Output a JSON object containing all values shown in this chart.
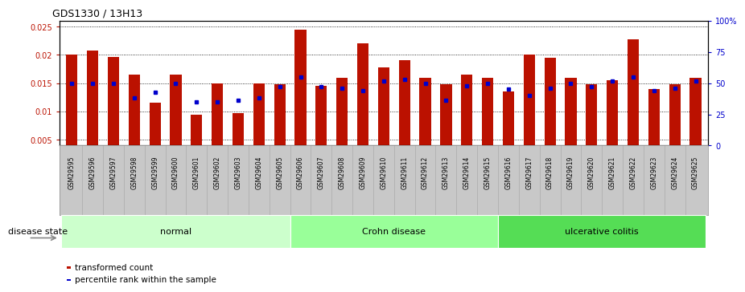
{
  "title": "GDS1330 / 13H13",
  "samples": [
    "GSM29595",
    "GSM29596",
    "GSM29597",
    "GSM29598",
    "GSM29599",
    "GSM29600",
    "GSM29601",
    "GSM29602",
    "GSM29603",
    "GSM29604",
    "GSM29605",
    "GSM29606",
    "GSM29607",
    "GSM29608",
    "GSM29609",
    "GSM29610",
    "GSM29611",
    "GSM29612",
    "GSM29613",
    "GSM29614",
    "GSM29615",
    "GSM29616",
    "GSM29617",
    "GSM29618",
    "GSM29619",
    "GSM29620",
    "GSM29621",
    "GSM29622",
    "GSM29623",
    "GSM29624",
    "GSM29625"
  ],
  "transformed_count": [
    0.02,
    0.0207,
    0.0197,
    0.0165,
    0.0115,
    0.0165,
    0.0095,
    0.015,
    0.0097,
    0.015,
    0.0148,
    0.0244,
    0.0145,
    0.016,
    0.022,
    0.0178,
    0.019,
    0.016,
    0.0148,
    0.0165,
    0.016,
    0.0135,
    0.02,
    0.0195,
    0.016,
    0.0148,
    0.0155,
    0.0228,
    0.014,
    0.0148,
    0.016
  ],
  "percentile_rank": [
    50,
    50,
    50,
    38,
    43,
    50,
    35,
    35,
    36,
    38,
    47,
    55,
    47,
    46,
    44,
    52,
    53,
    50,
    36,
    48,
    50,
    45,
    40,
    46,
    50,
    47,
    52,
    55,
    44,
    46,
    52
  ],
  "groups": [
    {
      "label": "normal",
      "start": 0,
      "end": 11,
      "color": "#ccffcc"
    },
    {
      "label": "Crohn disease",
      "start": 11,
      "end": 21,
      "color": "#99ff99"
    },
    {
      "label": "ulcerative colitis",
      "start": 21,
      "end": 31,
      "color": "#55dd55"
    }
  ],
  "ylim_left": [
    0.004,
    0.026
  ],
  "ylim_right": [
    0,
    100
  ],
  "yticks_left": [
    0.005,
    0.01,
    0.015,
    0.02,
    0.025
  ],
  "yticks_right": [
    0,
    25,
    50,
    75,
    100
  ],
  "bar_color": "#bb1100",
  "dot_color": "#0000cc",
  "background_color": "#ffffff",
  "label_transformed": "transformed count",
  "label_percentile": "percentile rank within the sample",
  "disease_state_label": "disease state",
  "group_border_colors": [
    "#aaddaa",
    "#77dd77",
    "#33cc33"
  ]
}
